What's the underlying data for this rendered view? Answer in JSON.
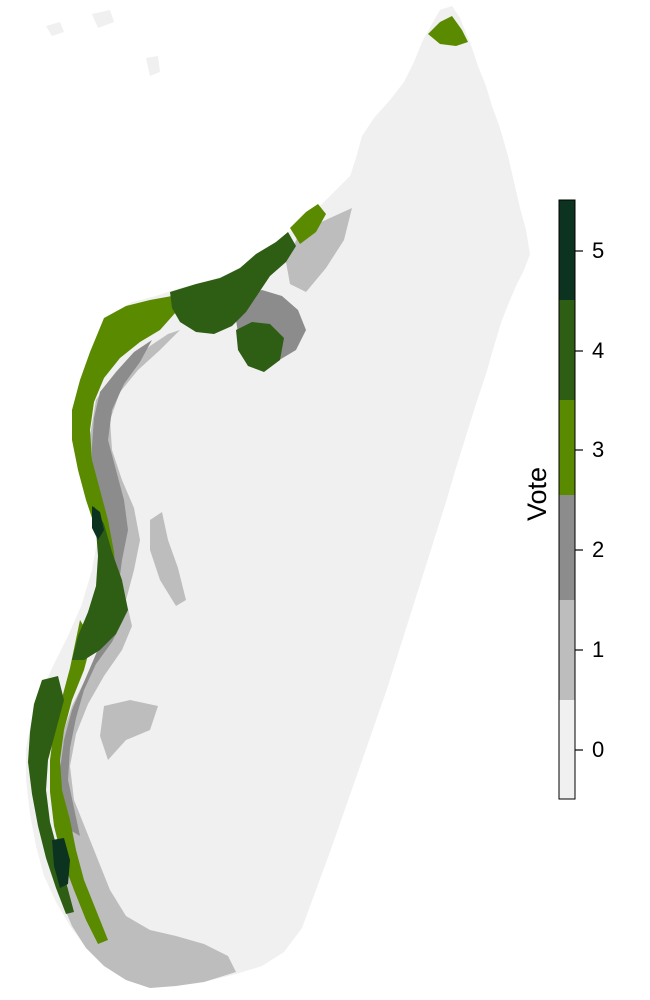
{
  "legend": {
    "title": "Vote",
    "classes": [
      {
        "value": "0",
        "color": "#f0f0f0"
      },
      {
        "value": "1",
        "color": "#bdbdbd"
      },
      {
        "value": "2",
        "color": "#8c8c8c"
      },
      {
        "value": "3",
        "color": "#5a8a00"
      },
      {
        "value": "4",
        "color": "#2e5e14"
      },
      {
        "value": "5",
        "color": "#0b3320"
      }
    ]
  },
  "colors": {
    "background": "#ffffff",
    "land_base": "#f0f0f0",
    "tick": "#000000"
  }
}
